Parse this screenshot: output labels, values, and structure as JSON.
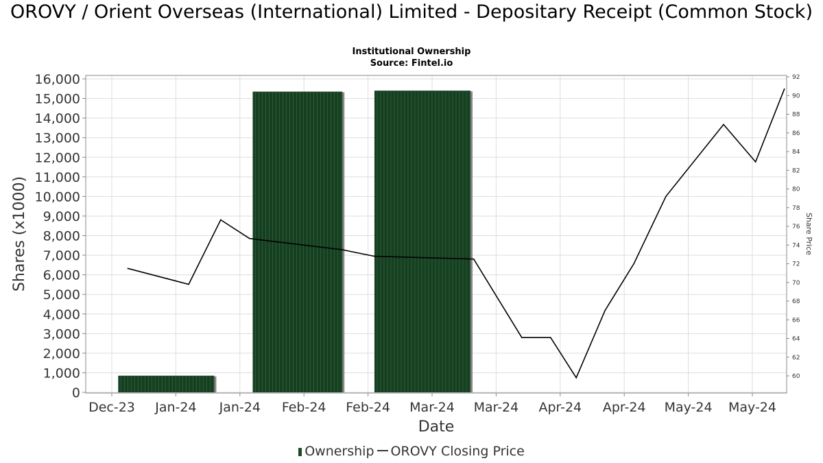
{
  "title": "OROVY / Orient Overseas (International) Limited - Depositary Receipt (Common Stock)",
  "subtitle1": "Institutional Ownership",
  "subtitle2": "Source: Fintel.io",
  "colors": {
    "bar_fill": "#163f22",
    "bar_shadow": "#888888",
    "line": "#000000",
    "grid": "#dddddd"
  },
  "chart_data": {
    "type": "bar",
    "xlabel": "Date",
    "ylabel": "Shares (x1000)",
    "y2label": "Share Price",
    "ylim": [
      0,
      16000
    ],
    "y2lim": [
      58.2,
      92
    ],
    "grid": true,
    "legend_position": "bottom",
    "x_ticks": [
      "Dec-23",
      "Jan-24",
      "Jan-24",
      "Feb-24",
      "Feb-24",
      "Mar-24",
      "Mar-24",
      "Apr-24",
      "Apr-24",
      "May-24",
      "May-24"
    ],
    "y_ticks": [
      "0",
      "1,000",
      "2,000",
      "3,000",
      "4,000",
      "5,000",
      "6,000",
      "7,000",
      "8,000",
      "9,000",
      "10,000",
      "11,000",
      "12,000",
      "13,000",
      "14,000",
      "15,000",
      "16,000"
    ],
    "y2_ticks": [
      "60",
      "62",
      "64",
      "66",
      "68",
      "70",
      "72",
      "74",
      "76",
      "78",
      "80",
      "82",
      "84",
      "86",
      "88",
      "90",
      "92"
    ],
    "series": [
      {
        "name": "Ownership",
        "type": "bar",
        "bars": [
          {
            "start": 0.1,
            "end": 1.6,
            "value": 850
          },
          {
            "start": 2.2,
            "end": 3.6,
            "value": 15350
          },
          {
            "start": 4.1,
            "end": 5.6,
            "value": 15400
          }
        ]
      },
      {
        "name": "OROVY Closing Price",
        "type": "line",
        "x": [
          0.25,
          1.2,
          1.7,
          2.15,
          3.6,
          4.1,
          5.65,
          6.4,
          6.85,
          7.25,
          7.7,
          8.15,
          8.65,
          9.55,
          10.05,
          10.5
        ],
        "y": [
          71.5,
          69.8,
          76.7,
          74.7,
          73.5,
          72.8,
          72.5,
          64.1,
          64.1,
          59.8,
          67.0,
          72.0,
          79.2,
          86.9,
          82.9,
          90.7
        ]
      }
    ]
  }
}
